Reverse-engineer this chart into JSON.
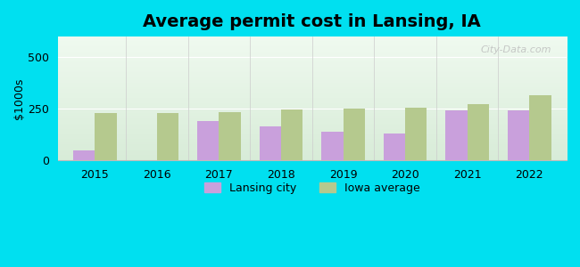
{
  "title": "Average permit cost in Lansing, IA",
  "ylabel": "$1000s",
  "years": [
    2015,
    2016,
    2017,
    2018,
    2019,
    2020,
    2021,
    2022
  ],
  "lansing_values": [
    50,
    null,
    190,
    165,
    140,
    130,
    245,
    245
  ],
  "iowa_values": [
    230,
    230,
    235,
    248,
    250,
    257,
    272,
    315
  ],
  "lansing_color": "#c9a0dc",
  "iowa_color": "#b5c98e",
  "background_outer": "#00e0f0",
  "background_plot_top": "#d8ecd8",
  "background_plot_bottom": "#f0faf0",
  "ylim": [
    0,
    600
  ],
  "yticks": [
    0,
    250,
    500
  ],
  "bar_width": 0.35,
  "legend_labels": [
    "Lansing city",
    "Iowa average"
  ],
  "title_fontsize": 14,
  "axis_fontsize": 9,
  "watermark": "City-Data.com"
}
